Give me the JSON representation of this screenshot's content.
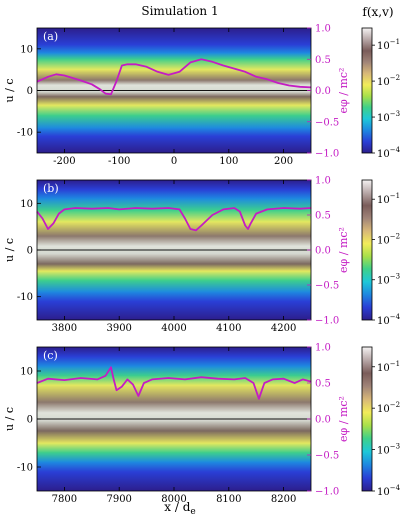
{
  "figure": {
    "title": "Simulation 1",
    "xlabel": "x / d",
    "xlabel_subscript": "e",
    "colorbar_title": "f(x,v)"
  },
  "colors": {
    "potential": "#c41cc4",
    "line_zero": "#111111",
    "spine": "#000000",
    "background": "#ffffff"
  },
  "chart_data": [
    {
      "type": "heatmap",
      "panel_label": "(a)",
      "xlabel": "",
      "ylabel": "u / c",
      "y2label": "eφ / mc²",
      "xlim": [
        -250,
        250
      ],
      "ylim": [
        -15,
        15
      ],
      "y2lim": [
        -1.0,
        1.0
      ],
      "xticks": [
        -200,
        -100,
        0,
        100,
        200
      ],
      "yticks": [
        -10,
        0,
        10
      ],
      "y2ticks": [
        -1.0,
        -0.5,
        0.0,
        0.5,
        1.0
      ],
      "y2ticklabels": [
        "−1.0",
        "−0.5",
        "0.0",
        "0.5",
        "1.0"
      ],
      "show_xticklabels": true,
      "density_bands_u": [
        {
          "u_min": -9,
          "u_max": 9,
          "level": "low"
        },
        {
          "u_min": -6,
          "u_max": 7.5,
          "level": "mid"
        },
        {
          "u_min": -3.5,
          "u_max": 5,
          "level": "high"
        },
        {
          "u_min": -1.5,
          "u_max": 2.5,
          "level": "peak"
        }
      ],
      "potential_series": {
        "name": "eφ / mc²",
        "x": [
          -250,
          -230,
          -215,
          -200,
          -185,
          -170,
          -150,
          -135,
          -125,
          -115,
          -105,
          -95,
          -85,
          -70,
          -50,
          -30,
          -10,
          10,
          30,
          50,
          70,
          90,
          110,
          130,
          150,
          170,
          190,
          210,
          230,
          250
        ],
        "y": [
          0.14,
          0.22,
          0.26,
          0.24,
          0.2,
          0.16,
          0.1,
          0.02,
          -0.05,
          -0.06,
          0.15,
          0.4,
          0.42,
          0.42,
          0.38,
          0.3,
          0.25,
          0.3,
          0.45,
          0.5,
          0.46,
          0.4,
          0.35,
          0.3,
          0.22,
          0.18,
          0.12,
          0.08,
          0.06,
          0.05
        ]
      }
    },
    {
      "type": "heatmap",
      "panel_label": "(b)",
      "xlabel": "",
      "ylabel": "u / c",
      "y2label": "eφ / mc²",
      "xlim": [
        3750,
        4250
      ],
      "ylim": [
        -15,
        15
      ],
      "y2lim": [
        -1.0,
        1.0
      ],
      "xticks": [
        3800,
        3900,
        4000,
        4100,
        4200
      ],
      "yticks": [
        -10,
        0,
        10
      ],
      "y2ticks": [
        -1.0,
        -0.5,
        0.0,
        0.5,
        1.0
      ],
      "y2ticklabels": [
        "−1.0",
        "−0.5",
        "0.0",
        "0.5",
        "1.0"
      ],
      "show_xticklabels": true,
      "density_bands_u": [
        {
          "u_min": -9,
          "u_max": 11,
          "level": "low"
        },
        {
          "u_min": -6.5,
          "u_max": 8.5,
          "level": "mid"
        },
        {
          "u_min": -4.5,
          "u_max": 6,
          "level": "high"
        },
        {
          "u_min": -3,
          "u_max": 3,
          "level": "peak"
        }
      ],
      "potential_series": {
        "name": "eφ / mc²",
        "x": [
          3750,
          3760,
          3770,
          3780,
          3790,
          3800,
          3820,
          3850,
          3880,
          3900,
          3930,
          3960,
          3990,
          4010,
          4020,
          4030,
          4040,
          4050,
          4070,
          4090,
          4110,
          4120,
          4130,
          4135,
          4140,
          4150,
          4170,
          4200,
          4230,
          4250
        ],
        "y": [
          0.55,
          0.45,
          0.3,
          0.38,
          0.52,
          0.58,
          0.6,
          0.59,
          0.6,
          0.58,
          0.6,
          0.59,
          0.6,
          0.58,
          0.45,
          0.3,
          0.28,
          0.35,
          0.5,
          0.58,
          0.6,
          0.55,
          0.35,
          0.3,
          0.38,
          0.52,
          0.58,
          0.6,
          0.59,
          0.6
        ]
      }
    },
    {
      "type": "heatmap",
      "panel_label": "(c)",
      "xlabel": "x / de",
      "ylabel": "u / c",
      "y2label": "eφ / mc²",
      "xlim": [
        7750,
        8250
      ],
      "ylim": [
        -15,
        15
      ],
      "y2lim": [
        -1.0,
        1.0
      ],
      "xticks": [
        7800,
        7900,
        8000,
        8100,
        8200
      ],
      "yticks": [
        -10,
        0,
        10
      ],
      "y2ticks": [
        -1.0,
        -0.5,
        0.0,
        0.5,
        1.0
      ],
      "y2ticklabels": [
        "−1.0",
        "−0.5",
        "0.0",
        "0.5",
        "1.0"
      ],
      "show_xticklabels": true,
      "density_bands_u": [
        {
          "u_min": -9,
          "u_max": 11,
          "level": "low"
        },
        {
          "u_min": -7,
          "u_max": 9,
          "level": "mid"
        },
        {
          "u_min": -5,
          "u_max": 7,
          "level": "high"
        },
        {
          "u_min": -2.5,
          "u_max": 3.5,
          "level": "peak"
        }
      ],
      "potential_series": {
        "name": "eφ / mc²",
        "x": [
          7750,
          7770,
          7800,
          7830,
          7860,
          7875,
          7885,
          7890,
          7895,
          7905,
          7915,
          7925,
          7935,
          7945,
          7960,
          7990,
          8020,
          8050,
          8080,
          8110,
          8130,
          8145,
          8155,
          8165,
          8180,
          8200,
          8220,
          8235,
          8250
        ],
        "y": [
          0.5,
          0.56,
          0.54,
          0.57,
          0.55,
          0.6,
          0.72,
          0.55,
          0.4,
          0.45,
          0.55,
          0.48,
          0.32,
          0.5,
          0.55,
          0.57,
          0.55,
          0.58,
          0.56,
          0.55,
          0.57,
          0.5,
          0.28,
          0.5,
          0.55,
          0.56,
          0.5,
          0.55,
          0.52
        ]
      }
    }
  ],
  "colorbar": {
    "tick_exponents": [
      "−1",
      "−2",
      "−3",
      "−4"
    ],
    "tick_values": [
      0.1,
      0.01,
      0.001,
      0.0001
    ],
    "range": [
      0.0001,
      0.3
    ],
    "scale": "log",
    "colormap_stops": [
      "#2c1e8c",
      "#2a3fd6",
      "#1e88e0",
      "#1ec8d8",
      "#3ed08a",
      "#a8e04a",
      "#f2ec5a",
      "#d8b878",
      "#a08478",
      "#7a5c5a",
      "#b8a8a8",
      "#f5f3f3"
    ]
  }
}
